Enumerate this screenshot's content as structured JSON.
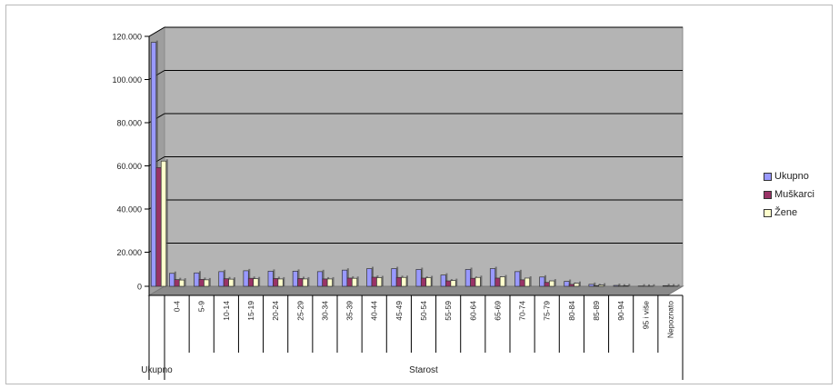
{
  "chart_data": {
    "type": "bar",
    "title": "",
    "xlabel": "",
    "ylabel": "",
    "ylim": [
      0,
      120000
    ],
    "yticks": [
      {
        "value": 0,
        "label": "0"
      },
      {
        "value": 20000,
        "label": "20.000"
      },
      {
        "value": 40000,
        "label": "40.000"
      },
      {
        "value": 60000,
        "label": "60.000"
      },
      {
        "value": 80000,
        "label": "80.000"
      },
      {
        "value": 100000,
        "label": "100.000"
      },
      {
        "value": 120000,
        "label": "120.000"
      }
    ],
    "grid": true,
    "legend_position": "right",
    "groups": [
      {
        "label": "Ukupno",
        "start": 0,
        "count": 1
      },
      {
        "label": "Starost",
        "start": 1,
        "count": 21
      }
    ],
    "categories": [
      "",
      "0-4",
      "5-9",
      "10-14",
      "15-19",
      "20-24",
      "25-29",
      "30-34",
      "35-39",
      "40-44",
      "45-49",
      "50-54",
      "55-59",
      "60-64",
      "65-69",
      "70-74",
      "75-79",
      "80-84",
      "85-89",
      "90-94",
      "95 i više",
      "Nepoznato"
    ],
    "series": [
      {
        "name": "Ukupno",
        "color": "#9999ff",
        "values": [
          113000,
          6000,
          6200,
          6800,
          7200,
          7000,
          7000,
          6800,
          7500,
          8200,
          8200,
          7800,
          5200,
          7800,
          8200,
          6800,
          4300,
          2300,
          900,
          400,
          150,
          300
        ]
      },
      {
        "name": "Muškarci",
        "color": "#993366",
        "values": [
          55000,
          3100,
          3200,
          3500,
          3700,
          3600,
          3600,
          3400,
          3800,
          4200,
          4100,
          3800,
          2500,
          3700,
          3800,
          3000,
          1800,
          900,
          300,
          150,
          50,
          200
        ]
      },
      {
        "name": "Žene",
        "color": "#ffffcc",
        "values": [
          58000,
          2900,
          3000,
          3300,
          3500,
          3400,
          3400,
          3400,
          3700,
          4000,
          4100,
          4000,
          2700,
          4100,
          4400,
          3800,
          2500,
          1400,
          600,
          250,
          100,
          100
        ]
      }
    ]
  }
}
